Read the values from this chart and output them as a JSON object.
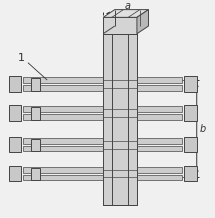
{
  "bg_color": "#f0f0f0",
  "line_color": "#444444",
  "plate_fill": "#d0d0d0",
  "bar_fill": "#c8c8c8",
  "nut_fill": "#c0c0c0",
  "dim_color": "#333333",
  "label_1": "1",
  "label_a": "a",
  "label_b": "b",
  "figsize": [
    2.15,
    2.18
  ],
  "dpi": 100,
  "xlim": [
    0,
    215
  ],
  "ylim": [
    0,
    218
  ]
}
